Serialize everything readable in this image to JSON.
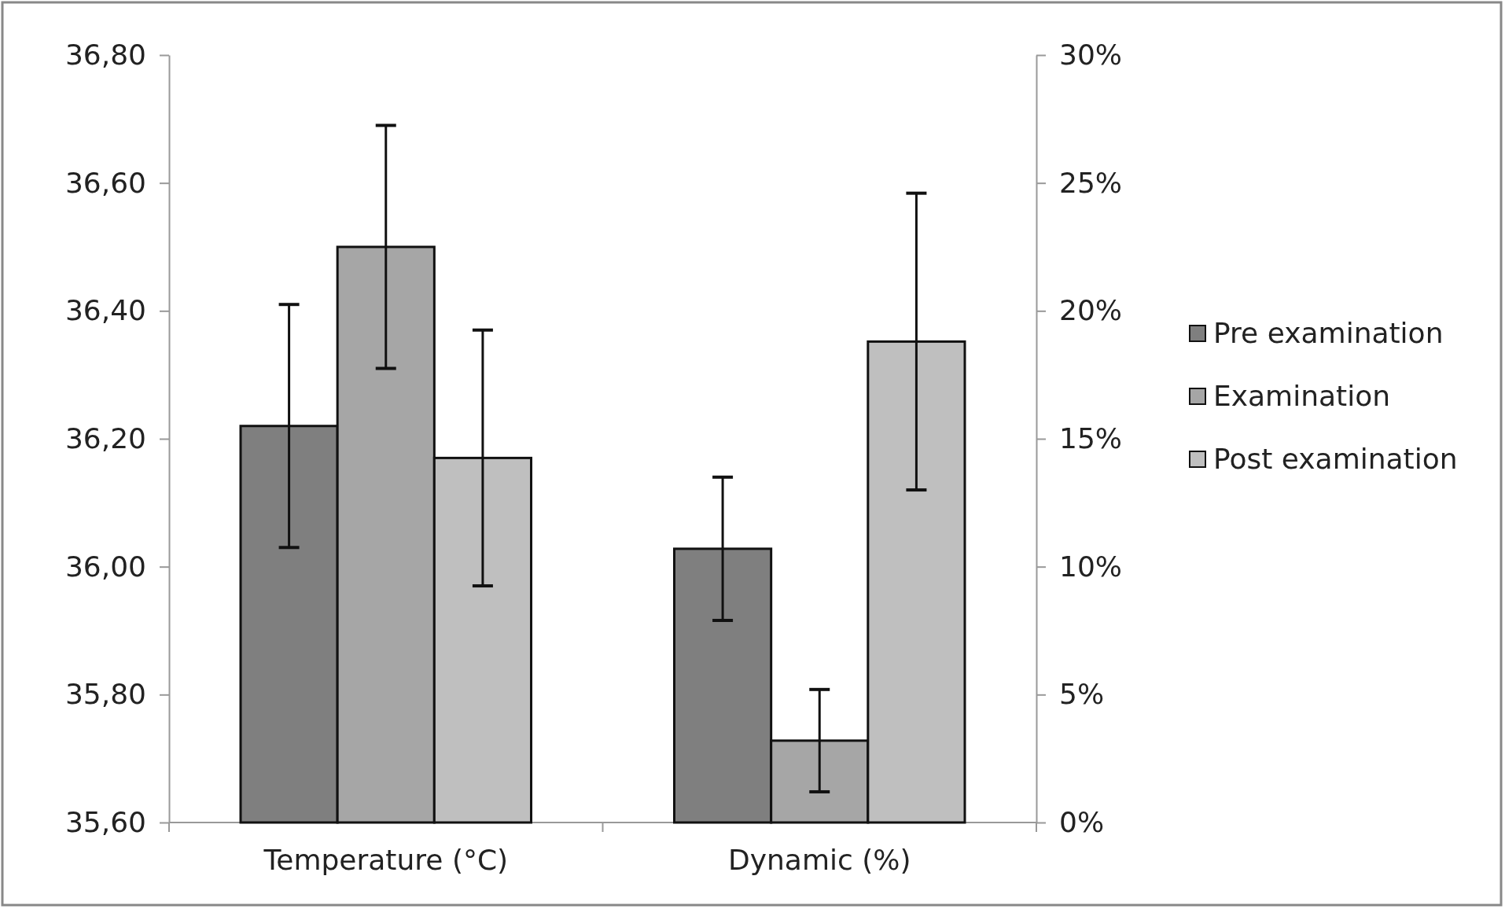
{
  "chart_data": {
    "type": "bar",
    "categories": [
      "Temperature (°C)",
      "Dynamic (%)"
    ],
    "series": [
      {
        "name": "Pre examination",
        "color": "#7f7f7f",
        "axis": "y",
        "values": [
          36.22,
          null
        ],
        "errors": [
          0.19,
          null
        ]
      },
      {
        "name": "Examination",
        "color": "#a6a6a6",
        "axis": "y",
        "values": [
          36.5,
          null
        ],
        "errors": [
          0.19,
          null
        ]
      },
      {
        "name": "Post examination",
        "color": "#bfbfbf",
        "axis": "y",
        "values": [
          36.17,
          null
        ],
        "errors": [
          0.2,
          null
        ]
      },
      {
        "color": "#7f7f7f",
        "axis": "y2",
        "values": [
          null,
          10.7
        ],
        "errors": [
          null,
          2.8
        ]
      },
      {
        "color": "#a6a6a6",
        "axis": "y2",
        "values": [
          null,
          3.2
        ],
        "errors": [
          null,
          2.0
        ]
      },
      {
        "color": "#bfbfbf",
        "axis": "y2",
        "values": [
          null,
          18.8
        ],
        "errors": [
          null,
          5.8
        ]
      }
    ],
    "ylim": [
      35.6,
      36.8
    ],
    "yticks": [
      {
        "value": 35.6,
        "label": "35,60"
      },
      {
        "value": 35.8,
        "label": "35,80"
      },
      {
        "value": 36.0,
        "label": "36,00"
      },
      {
        "value": 36.2,
        "label": "36,20"
      },
      {
        "value": 36.4,
        "label": "36,40"
      },
      {
        "value": 36.6,
        "label": "36,60"
      },
      {
        "value": 36.8,
        "label": "36,80"
      }
    ],
    "y2lim": [
      0,
      30
    ],
    "y2ticks": [
      {
        "value": 0,
        "label": "0%"
      },
      {
        "value": 5,
        "label": "5%"
      },
      {
        "value": 10,
        "label": "10%"
      },
      {
        "value": 15,
        "label": "15%"
      },
      {
        "value": 20,
        "label": "20%"
      },
      {
        "value": 25,
        "label": "25%"
      },
      {
        "value": 30,
        "label": "30%"
      }
    ],
    "legend": "right",
    "grid": false
  }
}
